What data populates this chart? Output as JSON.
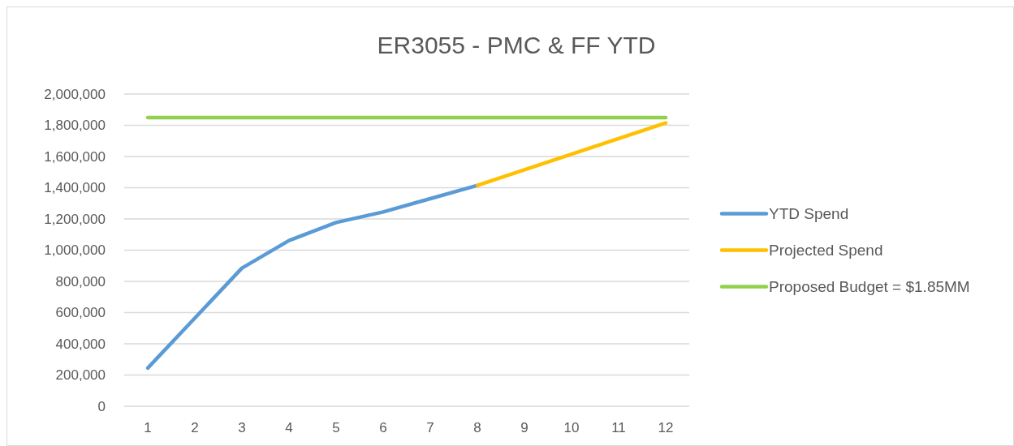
{
  "chart_data": {
    "type": "line",
    "title": "ER3055 - PMC & FF YTD",
    "x": [
      1,
      2,
      3,
      4,
      5,
      6,
      7,
      8,
      9,
      10,
      11,
      12
    ],
    "xlim": [
      0.5,
      12.5
    ],
    "xticks": [
      1,
      2,
      3,
      4,
      5,
      6,
      7,
      8,
      9,
      10,
      11,
      12
    ],
    "series": [
      {
        "name": "YTD Spend",
        "color": "#5b9bd5",
        "values": [
          245000,
          565000,
          885000,
          1062000,
          1177000,
          1245000,
          1330000,
          1415000,
          null,
          null,
          null,
          null
        ]
      },
      {
        "name": "Projected Spend",
        "color": "#ffc000",
        "values": [
          null,
          null,
          null,
          null,
          null,
          null,
          null,
          1415000,
          1515000,
          1615000,
          1715000,
          1815000
        ]
      },
      {
        "name": "Proposed Budget = $1.85MM",
        "color": "#92d050",
        "values": [
          1850000,
          1850000,
          1850000,
          1850000,
          1850000,
          1850000,
          1850000,
          1850000,
          1850000,
          1850000,
          1850000,
          1850000
        ]
      }
    ],
    "ylim": [
      0,
      2000000
    ],
    "yticks": [
      {
        "value": 0,
        "label": "0"
      },
      {
        "value": 200000,
        "label": "200,000"
      },
      {
        "value": 400000,
        "label": "400,000"
      },
      {
        "value": 600000,
        "label": "600,000"
      },
      {
        "value": 800000,
        "label": "800,000"
      },
      {
        "value": 1000000,
        "label": "1,000,000"
      },
      {
        "value": 1200000,
        "label": "1,200,000"
      },
      {
        "value": 1400000,
        "label": "1,400,000"
      },
      {
        "value": 1600000,
        "label": "1,600,000"
      },
      {
        "value": 1800000,
        "label": "1,800,000"
      },
      {
        "value": 2000000,
        "label": "2,000,000"
      }
    ],
    "grid": "y",
    "legend": "right",
    "marker": "none",
    "line_style": "solid"
  }
}
